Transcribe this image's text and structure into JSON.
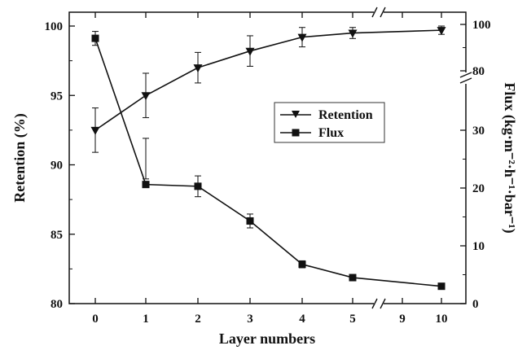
{
  "chart_data": {
    "type": "line",
    "xlabel": "Layer numbers",
    "ylabel_left": "Retention (%)",
    "ylabel_right": "Flux (kg·m⁻²·h⁻¹·bar⁻¹)",
    "x_categories": [
      "0",
      "1",
      "2",
      "3",
      "4",
      "5",
      "9",
      "10"
    ],
    "x_axis_break": "between 5 and 10",
    "right_axis_break": "between 80 and 100",
    "left_ylim": [
      80,
      100
    ],
    "left_yticks": [
      "80",
      "85",
      "90",
      "95",
      "100"
    ],
    "right_ylim": [
      0,
      100
    ],
    "right_yticks": [
      "0",
      "10",
      "20",
      "30",
      "80",
      "100"
    ],
    "legend_position": "center-right",
    "series": [
      {
        "name": "Retention",
        "axis": "left",
        "marker": "triangle-down",
        "x": [
          "0",
          "1",
          "2",
          "3",
          "4",
          "5",
          "10"
        ],
        "values": [
          92.5,
          95.0,
          97.0,
          98.2,
          99.2,
          99.5,
          99.7
        ],
        "error": [
          1.6,
          1.6,
          1.1,
          1.1,
          0.7,
          0.4,
          0.3
        ]
      },
      {
        "name": "Flux",
        "axis": "right",
        "marker": "square",
        "x": [
          "0",
          "1",
          "2",
          "3",
          "4",
          "5",
          "10"
        ],
        "values": [
          94,
          31,
          20.3,
          14.3,
          6.8,
          4.5,
          3.0
        ],
        "error": [
          3,
          2.4,
          1.8,
          1.2,
          0.6,
          0.4,
          0.4
        ]
      }
    ]
  }
}
